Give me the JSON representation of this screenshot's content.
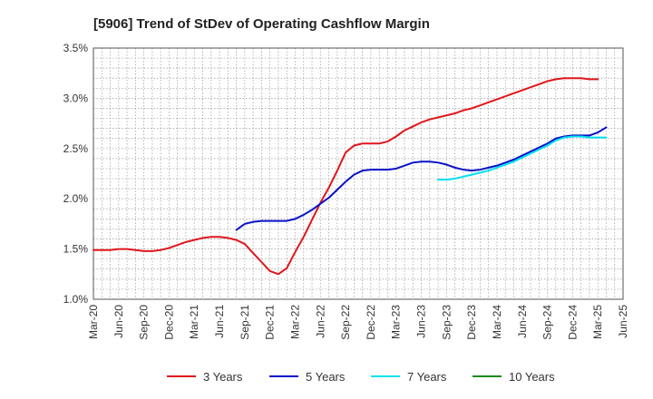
{
  "chart_data": {
    "type": "line",
    "title": "[5906]  Trend of StDev of Operating Cashflow Margin",
    "xlabel": "",
    "ylabel": "",
    "x_ticks": [
      "Mar-20",
      "Jun-20",
      "Sep-20",
      "Dec-20",
      "Mar-21",
      "Jun-21",
      "Sep-21",
      "Dec-21",
      "Mar-22",
      "Jun-22",
      "Sep-22",
      "Dec-22",
      "Mar-23",
      "Jun-23",
      "Sep-23",
      "Dec-23",
      "Mar-24",
      "Jun-24",
      "Sep-24",
      "Dec-24",
      "Mar-25",
      "Jun-25"
    ],
    "y_ticks": [
      "1.0%",
      "1.5%",
      "2.0%",
      "2.5%",
      "3.0%",
      "3.5%"
    ],
    "ylim": [
      1.0,
      3.5
    ],
    "y_unit": "%",
    "grid": true,
    "legend_position": "bottom",
    "series": [
      {
        "name": "3 Years",
        "color": "#e0161b",
        "points": [
          [
            "Mar-20",
            1.49
          ],
          [
            "Apr-20",
            1.49
          ],
          [
            "May-20",
            1.49
          ],
          [
            "Jun-20",
            1.5
          ],
          [
            "Jul-20",
            1.5
          ],
          [
            "Aug-20",
            1.49
          ],
          [
            "Sep-20",
            1.48
          ],
          [
            "Oct-20",
            1.48
          ],
          [
            "Nov-20",
            1.49
          ],
          [
            "Dec-20",
            1.51
          ],
          [
            "Jan-21",
            1.54
          ],
          [
            "Feb-21",
            1.57
          ],
          [
            "Mar-21",
            1.59
          ],
          [
            "Apr-21",
            1.61
          ],
          [
            "May-21",
            1.62
          ],
          [
            "Jun-21",
            1.62
          ],
          [
            "Jul-21",
            1.61
          ],
          [
            "Aug-21",
            1.59
          ],
          [
            "Sep-21",
            1.55
          ],
          [
            "Oct-21",
            1.46
          ],
          [
            "Nov-21",
            1.37
          ],
          [
            "Dec-21",
            1.28
          ],
          [
            "Jan-22",
            1.25
          ],
          [
            "Feb-22",
            1.31
          ],
          [
            "Mar-22",
            1.47
          ],
          [
            "Apr-22",
            1.62
          ],
          [
            "May-22",
            1.79
          ],
          [
            "Jun-22",
            1.96
          ],
          [
            "Jul-22",
            2.11
          ],
          [
            "Aug-22",
            2.28
          ],
          [
            "Sep-22",
            2.46
          ],
          [
            "Oct-22",
            2.53
          ],
          [
            "Nov-22",
            2.55
          ],
          [
            "Dec-22",
            2.55
          ],
          [
            "Jan-23",
            2.55
          ],
          [
            "Feb-23",
            2.57
          ],
          [
            "Mar-23",
            2.62
          ],
          [
            "Apr-23",
            2.68
          ],
          [
            "May-23",
            2.72
          ],
          [
            "Jun-23",
            2.76
          ],
          [
            "Jul-23",
            2.79
          ],
          [
            "Aug-23",
            2.81
          ],
          [
            "Sep-23",
            2.83
          ],
          [
            "Oct-23",
            2.85
          ],
          [
            "Nov-23",
            2.88
          ],
          [
            "Dec-23",
            2.9
          ],
          [
            "Jan-24",
            2.93
          ],
          [
            "Feb-24",
            2.96
          ],
          [
            "Mar-24",
            2.99
          ],
          [
            "Apr-24",
            3.02
          ],
          [
            "May-24",
            3.05
          ],
          [
            "Jun-24",
            3.08
          ],
          [
            "Jul-24",
            3.11
          ],
          [
            "Aug-24",
            3.14
          ],
          [
            "Sep-24",
            3.17
          ],
          [
            "Oct-24",
            3.19
          ],
          [
            "Nov-24",
            3.2
          ],
          [
            "Dec-24",
            3.2
          ],
          [
            "Jan-25",
            3.2
          ],
          [
            "Feb-25",
            3.19
          ],
          [
            "Mar-25",
            3.19
          ]
        ]
      },
      {
        "name": "5 Years",
        "color": "#0a12c8",
        "points": [
          [
            "Aug-21",
            1.69
          ],
          [
            "Sep-21",
            1.75
          ],
          [
            "Oct-21",
            1.77
          ],
          [
            "Nov-21",
            1.78
          ],
          [
            "Dec-21",
            1.78
          ],
          [
            "Jan-22",
            1.78
          ],
          [
            "Feb-22",
            1.78
          ],
          [
            "Mar-22",
            1.8
          ],
          [
            "Apr-22",
            1.84
          ],
          [
            "May-22",
            1.89
          ],
          [
            "Jun-22",
            1.95
          ],
          [
            "Jul-22",
            2.01
          ],
          [
            "Aug-22",
            2.09
          ],
          [
            "Sep-22",
            2.17
          ],
          [
            "Oct-22",
            2.24
          ],
          [
            "Nov-22",
            2.28
          ],
          [
            "Dec-22",
            2.29
          ],
          [
            "Jan-23",
            2.29
          ],
          [
            "Feb-23",
            2.29
          ],
          [
            "Mar-23",
            2.3
          ],
          [
            "Apr-23",
            2.33
          ],
          [
            "May-23",
            2.36
          ],
          [
            "Jun-23",
            2.37
          ],
          [
            "Jul-23",
            2.37
          ],
          [
            "Aug-23",
            2.36
          ],
          [
            "Sep-23",
            2.34
          ],
          [
            "Oct-23",
            2.31
          ],
          [
            "Nov-23",
            2.29
          ],
          [
            "Dec-23",
            2.28
          ],
          [
            "Jan-24",
            2.29
          ],
          [
            "Feb-24",
            2.31
          ],
          [
            "Mar-24",
            2.33
          ],
          [
            "Apr-24",
            2.36
          ],
          [
            "May-24",
            2.39
          ],
          [
            "Jun-24",
            2.43
          ],
          [
            "Jul-24",
            2.47
          ],
          [
            "Aug-24",
            2.51
          ],
          [
            "Sep-24",
            2.55
          ],
          [
            "Oct-24",
            2.6
          ],
          [
            "Nov-24",
            2.62
          ],
          [
            "Dec-24",
            2.63
          ],
          [
            "Jan-25",
            2.63
          ],
          [
            "Feb-25",
            2.63
          ],
          [
            "Mar-25",
            2.66
          ],
          [
            "Apr-25",
            2.71
          ]
        ]
      },
      {
        "name": "7 Years",
        "color": "#00e0f0",
        "points": [
          [
            "Aug-23",
            2.19
          ],
          [
            "Sep-23",
            2.19
          ],
          [
            "Oct-23",
            2.2
          ],
          [
            "Nov-23",
            2.22
          ],
          [
            "Dec-23",
            2.24
          ],
          [
            "Jan-24",
            2.26
          ],
          [
            "Feb-24",
            2.28
          ],
          [
            "Mar-24",
            2.31
          ],
          [
            "Apr-24",
            2.34
          ],
          [
            "May-24",
            2.37
          ],
          [
            "Jun-24",
            2.41
          ],
          [
            "Jul-24",
            2.45
          ],
          [
            "Aug-24",
            2.49
          ],
          [
            "Sep-24",
            2.53
          ],
          [
            "Oct-24",
            2.58
          ],
          [
            "Nov-24",
            2.61
          ],
          [
            "Dec-24",
            2.62
          ],
          [
            "Jan-25",
            2.62
          ],
          [
            "Feb-25",
            2.61
          ],
          [
            "Mar-25",
            2.61
          ],
          [
            "Apr-25",
            2.61
          ]
        ]
      },
      {
        "name": "10 Years",
        "color": "#1a8a1a",
        "points": []
      }
    ]
  }
}
